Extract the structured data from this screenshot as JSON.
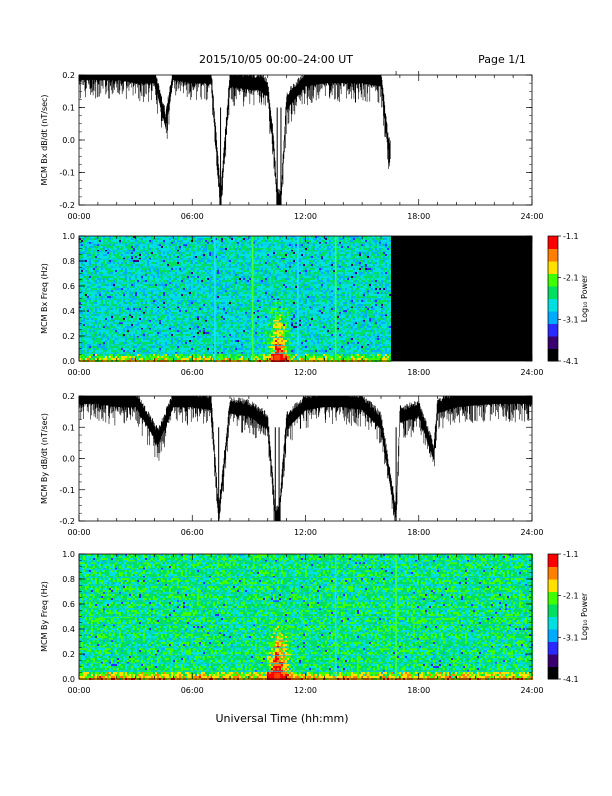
{
  "header": {
    "title": "2015/10/05   00:00–24:00 UT",
    "page_label": "Page 1/1"
  },
  "footer": {
    "xlabel": "Universal Time (hh:mm)"
  },
  "colorbar": {
    "label": "Log₁₀ Power",
    "ticks": [
      -1.1,
      -2.1,
      -3.1,
      -4.1
    ],
    "tick_labels": [
      "-1.1",
      "-2.1",
      "-3.1",
      "-4.1"
    ],
    "range": [
      -4.1,
      -1.1
    ],
    "colormap": [
      "#000000",
      "#3b0070",
      "#2a2aff",
      "#00aaff",
      "#00e0e0",
      "#00e060",
      "#40ff00",
      "#ffe000",
      "#ff8000",
      "#ff0000"
    ]
  },
  "chart_data": [
    {
      "type": "line",
      "ylabel": "MCM Bx dB/dt (nT/sec)",
      "xlim": [
        0,
        24
      ],
      "ylim": [
        -0.2,
        0.2
      ],
      "x_ticks": [
        "00:00",
        "06:00",
        "12:00",
        "18:00",
        "24:00"
      ],
      "y_ticks": [
        "0.2",
        "0.1",
        "0.0",
        "-0.1",
        "-0.2"
      ],
      "data_end_hour": 16.5,
      "series": [
        {
          "color": "#000000",
          "x": [
            0.0,
            1.0,
            2.0,
            3.0,
            4.0,
            4.6,
            5.0,
            6.0,
            7.0,
            7.5,
            8.0,
            9.0,
            9.5,
            10.0,
            10.3,
            10.5,
            10.7,
            11.0,
            12.0,
            13.0,
            14.0,
            15.0,
            16.0,
            16.4
          ],
          "y": [
            0.19,
            0.19,
            0.19,
            0.18,
            0.18,
            0.04,
            0.19,
            0.18,
            0.18,
            -0.2,
            0.17,
            0.16,
            0.16,
            0.14,
            -0.02,
            -0.2,
            -0.2,
            0.1,
            0.17,
            0.18,
            0.18,
            0.18,
            0.17,
            -0.04
          ]
        }
      ]
    },
    {
      "type": "heatmap",
      "ylabel": "MCM Bx Freq (Hz)",
      "xlim": [
        0,
        24
      ],
      "ylim": [
        0.0,
        1.0
      ],
      "x_ticks": [
        "00:00",
        "06:00",
        "12:00",
        "18:00",
        "24:00"
      ],
      "y_ticks": [
        "1.0",
        "0.8",
        "0.6",
        "0.4",
        "0.2",
        "0.0"
      ],
      "data_end_hour": 16.5,
      "harmonic_spacing_hz": 0.0625,
      "bright_vertical_hours": [
        7.2,
        9.2,
        11.6,
        13.6
      ],
      "burst_hour": 10.5
    },
    {
      "type": "line",
      "ylabel": "MCM By dB/dt (nT/sec)",
      "xlim": [
        0,
        24
      ],
      "ylim": [
        -0.2,
        0.2
      ],
      "x_ticks": [
        "00:00",
        "06:00",
        "12:00",
        "18:00",
        "24:00"
      ],
      "y_ticks": [
        "0.2",
        "0.1",
        "0.0",
        "-0.1",
        "-0.2"
      ],
      "data_end_hour": 24,
      "series": [
        {
          "color": "#000000",
          "x": [
            0.0,
            1.0,
            2.0,
            3.0,
            4.2,
            5.0,
            6.0,
            7.0,
            7.4,
            8.0,
            9.0,
            10.0,
            10.4,
            10.6,
            11.0,
            12.0,
            13.0,
            14.0,
            15.0,
            16.0,
            16.8,
            17.0,
            18.0,
            18.8,
            19.0,
            20.0,
            22.0,
            24.0
          ],
          "y": [
            0.18,
            0.18,
            0.17,
            0.17,
            0.05,
            0.17,
            0.17,
            0.16,
            -0.2,
            0.15,
            0.14,
            0.1,
            -0.2,
            -0.2,
            0.1,
            0.16,
            0.17,
            0.17,
            0.16,
            0.1,
            -0.2,
            0.12,
            0.14,
            0.0,
            0.15,
            0.17,
            0.18,
            0.18
          ]
        }
      ]
    },
    {
      "type": "heatmap",
      "ylabel": "MCM By Freq (Hz)",
      "xlim": [
        0,
        24
      ],
      "ylim": [
        0.0,
        1.0
      ],
      "x_ticks": [
        "00:00",
        "06:00",
        "12:00",
        "18:00",
        "24:00"
      ],
      "y_ticks": [
        "1.0",
        "0.8",
        "0.6",
        "0.4",
        "0.2",
        "0.0"
      ],
      "data_end_hour": 24,
      "harmonic_spacing_hz": 0.0625,
      "bright_vertical_hours": [
        13.6,
        16.8
      ],
      "burst_hour": 10.5
    }
  ]
}
